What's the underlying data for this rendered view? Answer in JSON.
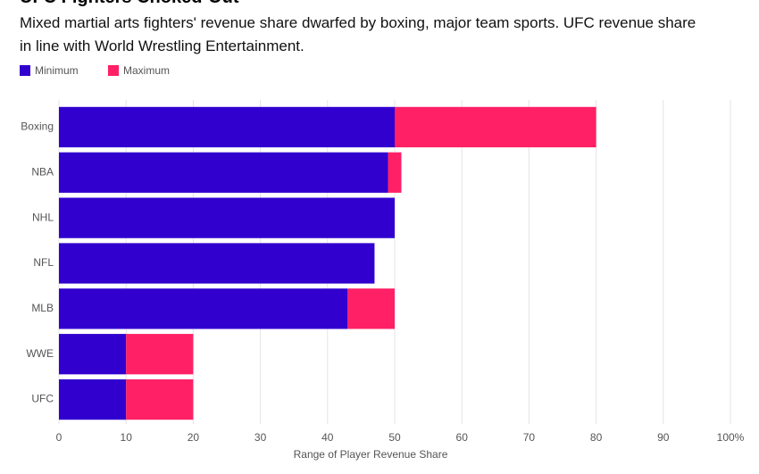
{
  "chart_data": {
    "type": "stacked-barh",
    "title": "UFC Fighters Choked-Out",
    "subtitle": "Mixed martial arts fighters' revenue share dwarfed by boxing, major team sports. UFC revenue share in line with World Wrestling Entertainment.",
    "x_label": "Range of Player Revenue Share",
    "categories": [
      "Boxing",
      "NBA",
      "NHL",
      "NFL",
      "MLB",
      "WWE",
      "UFC"
    ],
    "series": [
      {
        "name": "Minimum",
        "color": "#3100cf",
        "values": [
          50,
          49,
          50,
          47,
          43,
          10,
          10
        ]
      },
      {
        "name": "Maximum",
        "color": "#ff2066",
        "values": [
          30,
          2,
          0,
          0,
          7,
          10,
          10
        ]
      }
    ],
    "xlim": [
      0,
      100
    ],
    "xticks": [
      0,
      10,
      20,
      30,
      40,
      50,
      60,
      70,
      80,
      90,
      {
        "value": 100,
        "label": "100%"
      }
    ],
    "grid": true,
    "legend": "top-left"
  }
}
